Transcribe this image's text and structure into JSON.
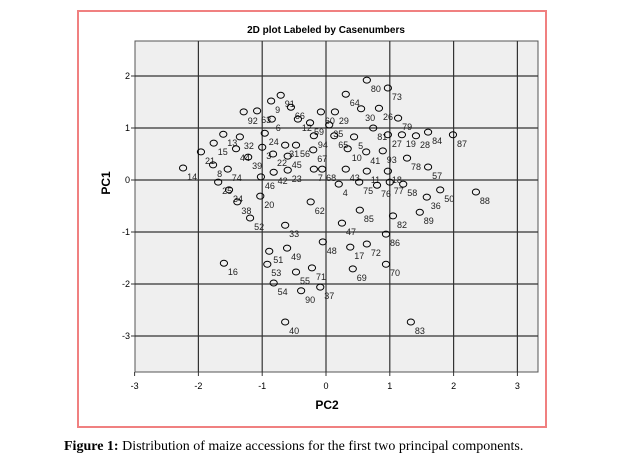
{
  "chart_data": {
    "type": "scatter",
    "title": "2D plot  Labeled by Casenumbers",
    "xlabel": "PC2",
    "ylabel": "PC1",
    "xlim": [
      -3,
      3.3
    ],
    "ylim": [
      -3.7,
      2.7
    ],
    "xticks": [
      -3,
      -2,
      -1,
      0,
      1,
      2,
      3
    ],
    "yticks": [
      2,
      1,
      0,
      -1,
      -2,
      -3
    ],
    "grid": true,
    "points": [
      {
        "label": "80",
        "x": 0.64,
        "y": 1.92
      },
      {
        "label": "73",
        "x": 0.97,
        "y": 1.77
      },
      {
        "label": "64",
        "x": 0.31,
        "y": 1.65
      },
      {
        "label": "91",
        "x": -0.71,
        "y": 1.63
      },
      {
        "label": "9",
        "x": -0.86,
        "y": 1.52
      },
      {
        "label": "66",
        "x": -0.55,
        "y": 1.4
      },
      {
        "label": "92",
        "x": -1.29,
        "y": 1.31
      },
      {
        "label": "63",
        "x": -1.08,
        "y": 1.33
      },
      {
        "label": "30",
        "x": 0.55,
        "y": 1.37
      },
      {
        "label": "26",
        "x": 0.83,
        "y": 1.38
      },
      {
        "label": "60",
        "x": -0.08,
        "y": 1.31
      },
      {
        "label": "29",
        "x": 0.14,
        "y": 1.31
      },
      {
        "label": "79",
        "x": 1.13,
        "y": 1.19
      },
      {
        "label": "6",
        "x": -0.85,
        "y": 1.17
      },
      {
        "label": "12",
        "x": -0.44,
        "y": 1.17
      },
      {
        "label": "59",
        "x": -0.25,
        "y": 1.1
      },
      {
        "label": "35",
        "x": 0.05,
        "y": 1.06
      },
      {
        "label": "81",
        "x": 0.74,
        "y": 1.0
      },
      {
        "label": "65",
        "x": 0.13,
        "y": 0.85
      },
      {
        "label": "5",
        "x": 0.44,
        "y": 0.83
      },
      {
        "label": "94",
        "x": -0.19,
        "y": 0.85
      },
      {
        "label": "27",
        "x": 0.97,
        "y": 0.87
      },
      {
        "label": "19",
        "x": 1.19,
        "y": 0.87
      },
      {
        "label": "28",
        "x": 1.41,
        "y": 0.85
      },
      {
        "label": "84",
        "x": 1.6,
        "y": 0.92
      },
      {
        "label": "87",
        "x": 1.99,
        "y": 0.87
      },
      {
        "label": "13",
        "x": -1.61,
        "y": 0.88
      },
      {
        "label": "32",
        "x": -1.35,
        "y": 0.83
      },
      {
        "label": "15",
        "x": -1.76,
        "y": 0.71
      },
      {
        "label": "21",
        "x": -1.96,
        "y": 0.54
      },
      {
        "label": "44",
        "x": -1.41,
        "y": 0.6
      },
      {
        "label": "39",
        "x": -1.22,
        "y": 0.44
      },
      {
        "label": "3",
        "x": -1.0,
        "y": 0.63
      },
      {
        "label": "24",
        "x": -0.96,
        "y": 0.9
      },
      {
        "label": "31",
        "x": -0.64,
        "y": 0.67
      },
      {
        "label": "56",
        "x": -0.47,
        "y": 0.67
      },
      {
        "label": "67",
        "x": -0.2,
        "y": 0.58
      },
      {
        "label": "10",
        "x": 0.34,
        "y": 0.6
      },
      {
        "label": "41",
        "x": 0.63,
        "y": 0.54
      },
      {
        "label": "93",
        "x": 0.89,
        "y": 0.56
      },
      {
        "label": "78",
        "x": 1.27,
        "y": 0.42
      },
      {
        "label": "22",
        "x": -0.83,
        "y": 0.5
      },
      {
        "label": "45",
        "x": -0.6,
        "y": 0.46
      },
      {
        "label": "8",
        "x": -1.77,
        "y": 0.29
      },
      {
        "label": "74",
        "x": -1.54,
        "y": 0.21
      },
      {
        "label": "7",
        "x": -0.19,
        "y": 0.21
      },
      {
        "label": "68",
        "x": -0.06,
        "y": 0.21
      },
      {
        "label": "23",
        "x": -0.6,
        "y": 0.19
      },
      {
        "label": "43",
        "x": 0.31,
        "y": 0.21
      },
      {
        "label": "11",
        "x": 0.64,
        "y": 0.17
      },
      {
        "label": "18",
        "x": 0.97,
        "y": 0.17
      },
      {
        "label": "57",
        "x": 1.6,
        "y": 0.25
      },
      {
        "label": "14",
        "x": -2.24,
        "y": 0.23
      },
      {
        "label": "42",
        "x": -0.82,
        "y": 0.15
      },
      {
        "label": "46",
        "x": -1.02,
        "y": 0.06
      },
      {
        "label": "25",
        "x": -1.69,
        "y": -0.04
      },
      {
        "label": "4",
        "x": 0.2,
        "y": -0.08
      },
      {
        "label": "75",
        "x": 0.52,
        "y": -0.04
      },
      {
        "label": "76",
        "x": 0.8,
        "y": -0.1
      },
      {
        "label": "77",
        "x": 1.0,
        "y": -0.04
      },
      {
        "label": "58",
        "x": 1.21,
        "y": -0.08
      },
      {
        "label": "50",
        "x": 1.79,
        "y": -0.19
      },
      {
        "label": "36",
        "x": 1.58,
        "y": -0.33
      },
      {
        "label": "88",
        "x": 2.35,
        "y": -0.23
      },
      {
        "label": "34",
        "x": -1.52,
        "y": -0.19
      },
      {
        "label": "20",
        "x": -1.03,
        "y": -0.31
      },
      {
        "label": "38",
        "x": -1.39,
        "y": -0.42
      },
      {
        "label": "62",
        "x": -0.24,
        "y": -0.42
      },
      {
        "label": "85",
        "x": 0.53,
        "y": -0.58
      },
      {
        "label": "82",
        "x": 1.05,
        "y": -0.69
      },
      {
        "label": "89",
        "x": 1.47,
        "y": -0.62
      },
      {
        "label": "52",
        "x": -1.19,
        "y": -0.73
      },
      {
        "label": "33",
        "x": -0.64,
        "y": -0.87
      },
      {
        "label": "47",
        "x": 0.25,
        "y": -0.83
      },
      {
        "label": "86",
        "x": 0.94,
        "y": -1.04
      },
      {
        "label": "48",
        "x": -0.05,
        "y": -1.19
      },
      {
        "label": "51",
        "x": -0.89,
        "y": -1.37
      },
      {
        "label": "49",
        "x": -0.61,
        "y": -1.31
      },
      {
        "label": "17",
        "x": 0.38,
        "y": -1.29
      },
      {
        "label": "72",
        "x": 0.64,
        "y": -1.23
      },
      {
        "label": "16",
        "x": -1.6,
        "y": -1.6
      },
      {
        "label": "53",
        "x": -0.92,
        "y": -1.62
      },
      {
        "label": "71",
        "x": -0.22,
        "y": -1.69
      },
      {
        "label": "70",
        "x": 0.94,
        "y": -1.62
      },
      {
        "label": "69",
        "x": 0.42,
        "y": -1.71
      },
      {
        "label": "55",
        "x": -0.47,
        "y": -1.77
      },
      {
        "label": "54",
        "x": -0.82,
        "y": -1.98
      },
      {
        "label": "37",
        "x": -0.09,
        "y": -2.06
      },
      {
        "label": "90",
        "x": -0.39,
        "y": -2.13
      },
      {
        "label": "40",
        "x": -0.64,
        "y": -2.73
      },
      {
        "label": "83",
        "x": 1.33,
        "y": -2.73
      }
    ]
  },
  "caption": {
    "label": "Figure 1:",
    "text": " Distribution of maize accessions for the first two principal components."
  }
}
